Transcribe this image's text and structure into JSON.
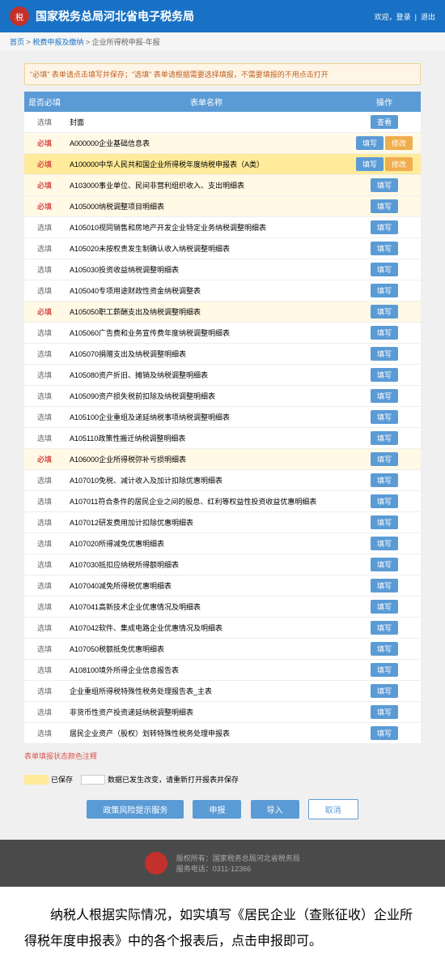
{
  "header": {
    "title": "国家税务总局河北省电子税务局",
    "welcome": "欢迎，登录",
    "logout": "退出"
  },
  "breadcrumb": {
    "home": "首页",
    "sep": ">",
    "level1": "税费申报及缴纳",
    "level2": "企业所得税申报-年报"
  },
  "notice": "\"必填\" 表单请点击填写并保存；\"选填\" 表单请根据需要选择填报，不需要填报的不用点击打开",
  "columns": {
    "status": "是否必填",
    "name": "表单名称",
    "action": "操作"
  },
  "labels": {
    "required": "必填",
    "optional": "选填"
  },
  "buttons": {
    "view": "查看",
    "fill": "填写",
    "modify": "修改"
  },
  "rows": [
    {
      "req": false,
      "hl": false,
      "name": "封面",
      "actions": [
        "view"
      ]
    },
    {
      "req": true,
      "hl": true,
      "name": "A000000企业基础信息表",
      "actions": [
        "fill",
        "modify"
      ]
    },
    {
      "req": true,
      "hl": false,
      "name": "A100000中华人民共和国企业所得税年度纳税申报表（A类）",
      "actions": [
        "fill",
        "modify"
      ],
      "yellow": true
    },
    {
      "req": true,
      "hl": true,
      "name": "A103000事业单位、民间非营利组织收入、支出明细表",
      "actions": [
        "fill"
      ]
    },
    {
      "req": true,
      "hl": true,
      "name": "A105000纳税调整项目明细表",
      "actions": [
        "fill"
      ]
    },
    {
      "req": false,
      "hl": false,
      "name": "A105010视同销售和房地产开发企业特定业务纳税调整明细表",
      "actions": [
        "fill"
      ]
    },
    {
      "req": false,
      "hl": false,
      "name": "A105020未按权责发生制确认收入纳税调整明细表",
      "actions": [
        "fill"
      ]
    },
    {
      "req": false,
      "hl": false,
      "name": "A105030投资收益纳税调整明细表",
      "actions": [
        "fill"
      ]
    },
    {
      "req": false,
      "hl": false,
      "name": "A105040专项用途财政性资金纳税调整表",
      "actions": [
        "fill"
      ]
    },
    {
      "req": true,
      "hl": true,
      "name": "A105050职工薪酬支出及纳税调整明细表",
      "actions": [
        "fill"
      ]
    },
    {
      "req": false,
      "hl": false,
      "name": "A105060广告费和业务宣传费年度纳税调整明细表",
      "actions": [
        "fill"
      ]
    },
    {
      "req": false,
      "hl": false,
      "name": "A105070捐赠支出及纳税调整明细表",
      "actions": [
        "fill"
      ]
    },
    {
      "req": false,
      "hl": false,
      "name": "A105080资产折旧、摊销及纳税调整明细表",
      "actions": [
        "fill"
      ]
    },
    {
      "req": false,
      "hl": false,
      "name": "A105090资产损失税前扣除及纳税调整明细表",
      "actions": [
        "fill"
      ]
    },
    {
      "req": false,
      "hl": false,
      "name": "A105100企业重组及递延纳税事项纳税调整明细表",
      "actions": [
        "fill"
      ]
    },
    {
      "req": false,
      "hl": false,
      "name": "A105110政策性搬迁纳税调整明细表",
      "actions": [
        "fill"
      ]
    },
    {
      "req": true,
      "hl": true,
      "name": "A106000企业所得税弥补亏损明细表",
      "actions": [
        "fill"
      ]
    },
    {
      "req": false,
      "hl": false,
      "name": "A107010免税、减计收入及加计扣除优惠明细表",
      "actions": [
        "fill"
      ]
    },
    {
      "req": false,
      "hl": false,
      "name": "A107011符合条件的居民企业之间的股息、红利等权益性投资收益优惠明细表",
      "actions": [
        "fill"
      ]
    },
    {
      "req": false,
      "hl": false,
      "name": "A107012研发费用加计扣除优惠明细表",
      "actions": [
        "fill"
      ]
    },
    {
      "req": false,
      "hl": false,
      "name": "A107020所得减免优惠明细表",
      "actions": [
        "fill"
      ]
    },
    {
      "req": false,
      "hl": false,
      "name": "A107030抵扣应纳税所得额明细表",
      "actions": [
        "fill"
      ]
    },
    {
      "req": false,
      "hl": false,
      "name": "A107040减免所得税优惠明细表",
      "actions": [
        "fill"
      ]
    },
    {
      "req": false,
      "hl": false,
      "name": "A107041高新技术企业优惠情况及明细表",
      "actions": [
        "fill"
      ]
    },
    {
      "req": false,
      "hl": false,
      "name": "A107042软件、集成电路企业优惠情况及明细表",
      "actions": [
        "fill"
      ]
    },
    {
      "req": false,
      "hl": false,
      "name": "A107050税额抵免优惠明细表",
      "actions": [
        "fill"
      ]
    },
    {
      "req": false,
      "hl": false,
      "name": "A108100境外所得企业信息报告表",
      "actions": [
        "fill"
      ]
    },
    {
      "req": false,
      "hl": false,
      "name": "企业重组所得税特殊性税务处理报告表_主表",
      "actions": [
        "fill"
      ]
    },
    {
      "req": false,
      "hl": false,
      "name": "非货币性资产投资递延纳税调整明细表",
      "actions": [
        "fill"
      ]
    },
    {
      "req": false,
      "hl": false,
      "name": "居民企业资产（股权）划转特殊性税务处理申报表",
      "actions": [
        "fill"
      ]
    }
  ],
  "legend": {
    "title": "表单填报状态颜色注释",
    "saved": "已保存",
    "unsaved": "数据已发生改变，请重新打开报表并保存"
  },
  "bottomButtons": {
    "risk": "政策风险提示服务",
    "declare": "申报",
    "import": "导入",
    "cancel": "取消"
  },
  "footer": {
    "copyright": "版权所有：国家税务总局河北省税务局",
    "phone": "服务电话：0311-12366"
  },
  "instruction": "纳税人根据实际情况，如实填写《居民企业（查账征收）企业所得税年度申报表》中的各个报表后，点击申报即可。"
}
